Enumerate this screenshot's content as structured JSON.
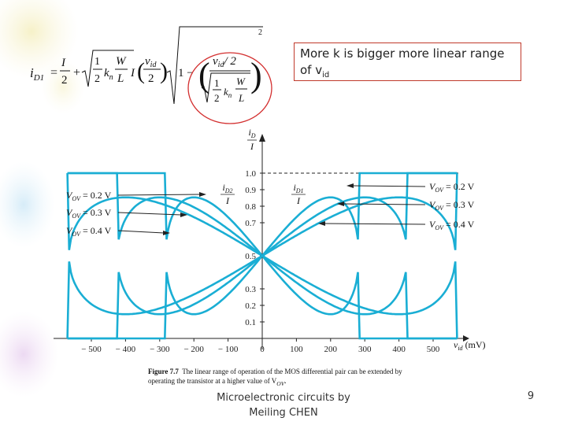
{
  "note": {
    "text": "More k is bigger more linear range of v",
    "sub": "id"
  },
  "equation": {
    "lhs": "i",
    "lhs_sub": "D1",
    "I": "I",
    "two": "2",
    "one": "1",
    "kn": "k",
    "kn_sub": "n",
    "W": "W",
    "L": "L",
    "vid": "v",
    "vid_sub": "id",
    "exp": "2",
    "minus": "1 −",
    "slash2": "/ 2"
  },
  "figure": {
    "y_axis_label_top": "i",
    "y_axis_label_sub": "D",
    "y_axis_label_bottom": "I",
    "x_axis_label": "v",
    "x_axis_label_sub": "id",
    "x_axis_unit": "(mV)",
    "y_ticks": [
      "1.0",
      "0.9",
      "0.8",
      "0.7",
      "0.5",
      "0.3",
      "0.2",
      "0.1"
    ],
    "x_ticks": [
      "− 500",
      "− 400",
      "− 300",
      "− 200",
      "− 100",
      "0",
      "100",
      "200",
      "300",
      "400",
      "500"
    ],
    "left_labels": [
      {
        "pre": "V",
        "sub": "OV",
        "post": " = 0.2 V"
      },
      {
        "pre": "V",
        "sub": "OV",
        "post": " = 0.3 V"
      },
      {
        "pre": "V",
        "sub": "OV",
        "post": " = 0.4 V"
      }
    ],
    "right_labels": [
      {
        "pre": "V",
        "sub": "OV",
        "post": " = 0.2 V"
      },
      {
        "pre": "V",
        "sub": "OV",
        "post": " = 0.3 V"
      },
      {
        "pre": "V",
        "sub": "OV",
        "post": " = 0.4 V"
      }
    ],
    "curve_label_left": {
      "top": "i",
      "sub": "D2",
      "bottom": "I"
    },
    "curve_label_right": {
      "top": "i",
      "sub": "D1",
      "bottom": "I"
    },
    "caption_bold": "Figure 7.7",
    "caption_text": "The linear range of operation of the MOS differential pair can be extended by operating the transistor at a higher value of V",
    "caption_sub": "OV",
    "caption_end": "."
  },
  "footer": {
    "line1": "Microelectronic circuits by",
    "line2": "Meiling CHEN"
  },
  "page_number": "9",
  "colors": {
    "curve": "#1aaed4",
    "annotation": "#d32f2f"
  }
}
